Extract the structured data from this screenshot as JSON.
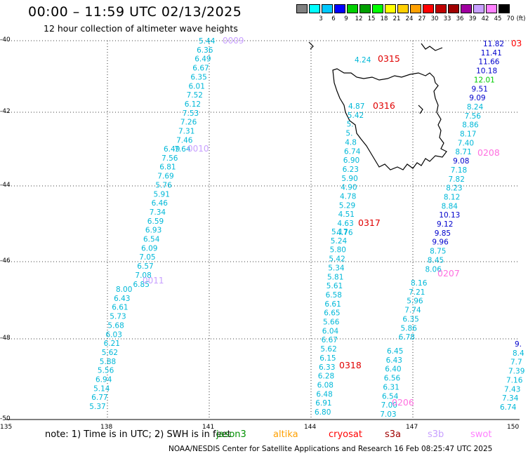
{
  "header": {
    "title": "00:00 – 11:59 UTC 02/13/2025",
    "subtitle": "12 hour collection of altimeter wave heights"
  },
  "legend": {
    "unit": "(ft)",
    "swatches": [
      {
        "color": "#808080",
        "label": ""
      },
      {
        "color": "#00ffff",
        "label": "3"
      },
      {
        "color": "#00c8ff",
        "label": "6"
      },
      {
        "color": "#0000ff",
        "label": "9"
      },
      {
        "color": "#00d000",
        "label": "12"
      },
      {
        "color": "#00a000",
        "label": "15"
      },
      {
        "color": "#00ff00",
        "label": "18"
      },
      {
        "color": "#ffff00",
        "label": "21"
      },
      {
        "color": "#ffd000",
        "label": "24"
      },
      {
        "color": "#ffa000",
        "label": "27"
      },
      {
        "color": "#ff0000",
        "label": "30"
      },
      {
        "color": "#c00000",
        "label": "33"
      },
      {
        "color": "#a00000",
        "label": "36"
      },
      {
        "color": "#a000a0",
        "label": "39"
      },
      {
        "color": "#c8a0ff",
        "label": "42"
      },
      {
        "color": "#ff80ff",
        "label": "45"
      },
      {
        "color": "#000000",
        "label": "70"
      }
    ]
  },
  "axes": {
    "lat_ticks": [
      "-40",
      "-42",
      "-44",
      "-46",
      "-48",
      "-50"
    ],
    "lon_ticks": [
      "135",
      "138",
      "141",
      "144",
      "147",
      "150"
    ]
  },
  "tracks": [
    {
      "id": "0009",
      "color": "#c8a0ff",
      "values": [
        "5.44",
        "6.36",
        "6.49",
        "6.67",
        "6.35",
        "6.01",
        "7.52",
        "6.12",
        "7.53",
        "7.26",
        "7.31",
        "7.46",
        "7.64"
      ]
    },
    {
      "id": "0010",
      "color": "#c8a0ff",
      "values": [
        "6.49",
        "7.56",
        "6.81",
        "7.69",
        "5.76",
        "5.91",
        "6.46",
        "7.34",
        "6.59",
        "6.93",
        "6.54",
        "6.09",
        "7.05",
        "6.57",
        "7.08",
        "6.85"
      ]
    },
    {
      "id": "0011",
      "color": "#c8a0ff",
      "values": [
        "8.00",
        "6.43",
        "6.61",
        "5.73",
        "5.68",
        "6.03",
        "6.21",
        "5.62",
        "5.88",
        "5.56",
        "6.94",
        "5.14",
        "6.77",
        "5.37"
      ]
    },
    {
      "id": "0315",
      "color": "#ff0000",
      "values": [
        "4.24"
      ]
    },
    {
      "id": "0316",
      "color": "#ff0000",
      "values": [
        "4.87",
        "5.42",
        "5.",
        "5.",
        "4.8",
        "6.74",
        "6.90",
        "6.23",
        "5.90",
        "4.90",
        "4.78",
        "5.29",
        "4.51",
        "4.63",
        "4.76"
      ]
    },
    {
      "id": "0317",
      "color": "#ff0000",
      "values": [
        "5.17",
        "5.24",
        "5.80",
        "5.42",
        "5.34",
        "5.81",
        "5.61",
        "6.58",
        "6.61",
        "6.65",
        "5.66",
        "6.04",
        "6.67",
        "5.62",
        "6.15",
        "6.33",
        "6.28",
        "6.08",
        "6.48",
        "6.91",
        "6.80"
      ]
    },
    {
      "id": "0318",
      "color": "#ff0000",
      "values": [
        "6.45",
        "6.43",
        "6.40",
        "6.56",
        "6.31",
        "6.54",
        "7.00",
        "7.03"
      ]
    },
    {
      "id": "0208",
      "color": "#ff80ff",
      "values": [
        "11.82",
        "11.41",
        "11.66",
        "10.18",
        "12.01",
        "9.51",
        "9.09",
        "8.24",
        "7.56",
        "8.86",
        "8.17",
        "7.40",
        "8.71",
        "9.08",
        "7.18",
        "7.82",
        "8.23",
        "8.12",
        "8.84",
        "10.13",
        "9.12",
        "9.85",
        "9.96",
        "8.75",
        "8.45",
        "8.06"
      ]
    },
    {
      "id": "0207",
      "color": "#ff80ff",
      "values": [
        "8.16",
        "7.21",
        "5.96",
        "7.74",
        "6.35",
        "5.86",
        "6.78"
      ]
    },
    {
      "id": "0206",
      "color": "#ff80ff",
      "values": []
    },
    {
      "id": "east",
      "color": "#00c8ff",
      "values": [
        "9.",
        "8.4",
        "7.7",
        "7.39",
        "7.16",
        "7.43",
        "7.34",
        "6.74"
      ]
    }
  ],
  "labels": {
    "label_0009": "0009",
    "label_0010": "0010",
    "label_0011": "0011",
    "label_0315": "0315",
    "label_0316": "0316",
    "label_0317": "0317",
    "label_0318": "0318",
    "label_0208": "0208",
    "label_0207": "0207",
    "label_0206": "0206",
    "label_03_edge": "03"
  },
  "footer": {
    "note": "note:  1) Time is in UTC; 2) SWH is in feet",
    "missions": [
      {
        "name": "jason3",
        "color": "#009000"
      },
      {
        "name": "altika",
        "color": "#ffa000"
      },
      {
        "name": "cryosat",
        "color": "#ff0000"
      },
      {
        "name": "s3a",
        "color": "#a00000"
      },
      {
        "name": "s3b",
        "color": "#c8a0ff"
      },
      {
        "name": "swot",
        "color": "#ff80ff"
      }
    ],
    "credit": "NOAA/NESDIS Center for Satellite Applications and Research     16 Feb 08:25:47 UTC 2025"
  }
}
